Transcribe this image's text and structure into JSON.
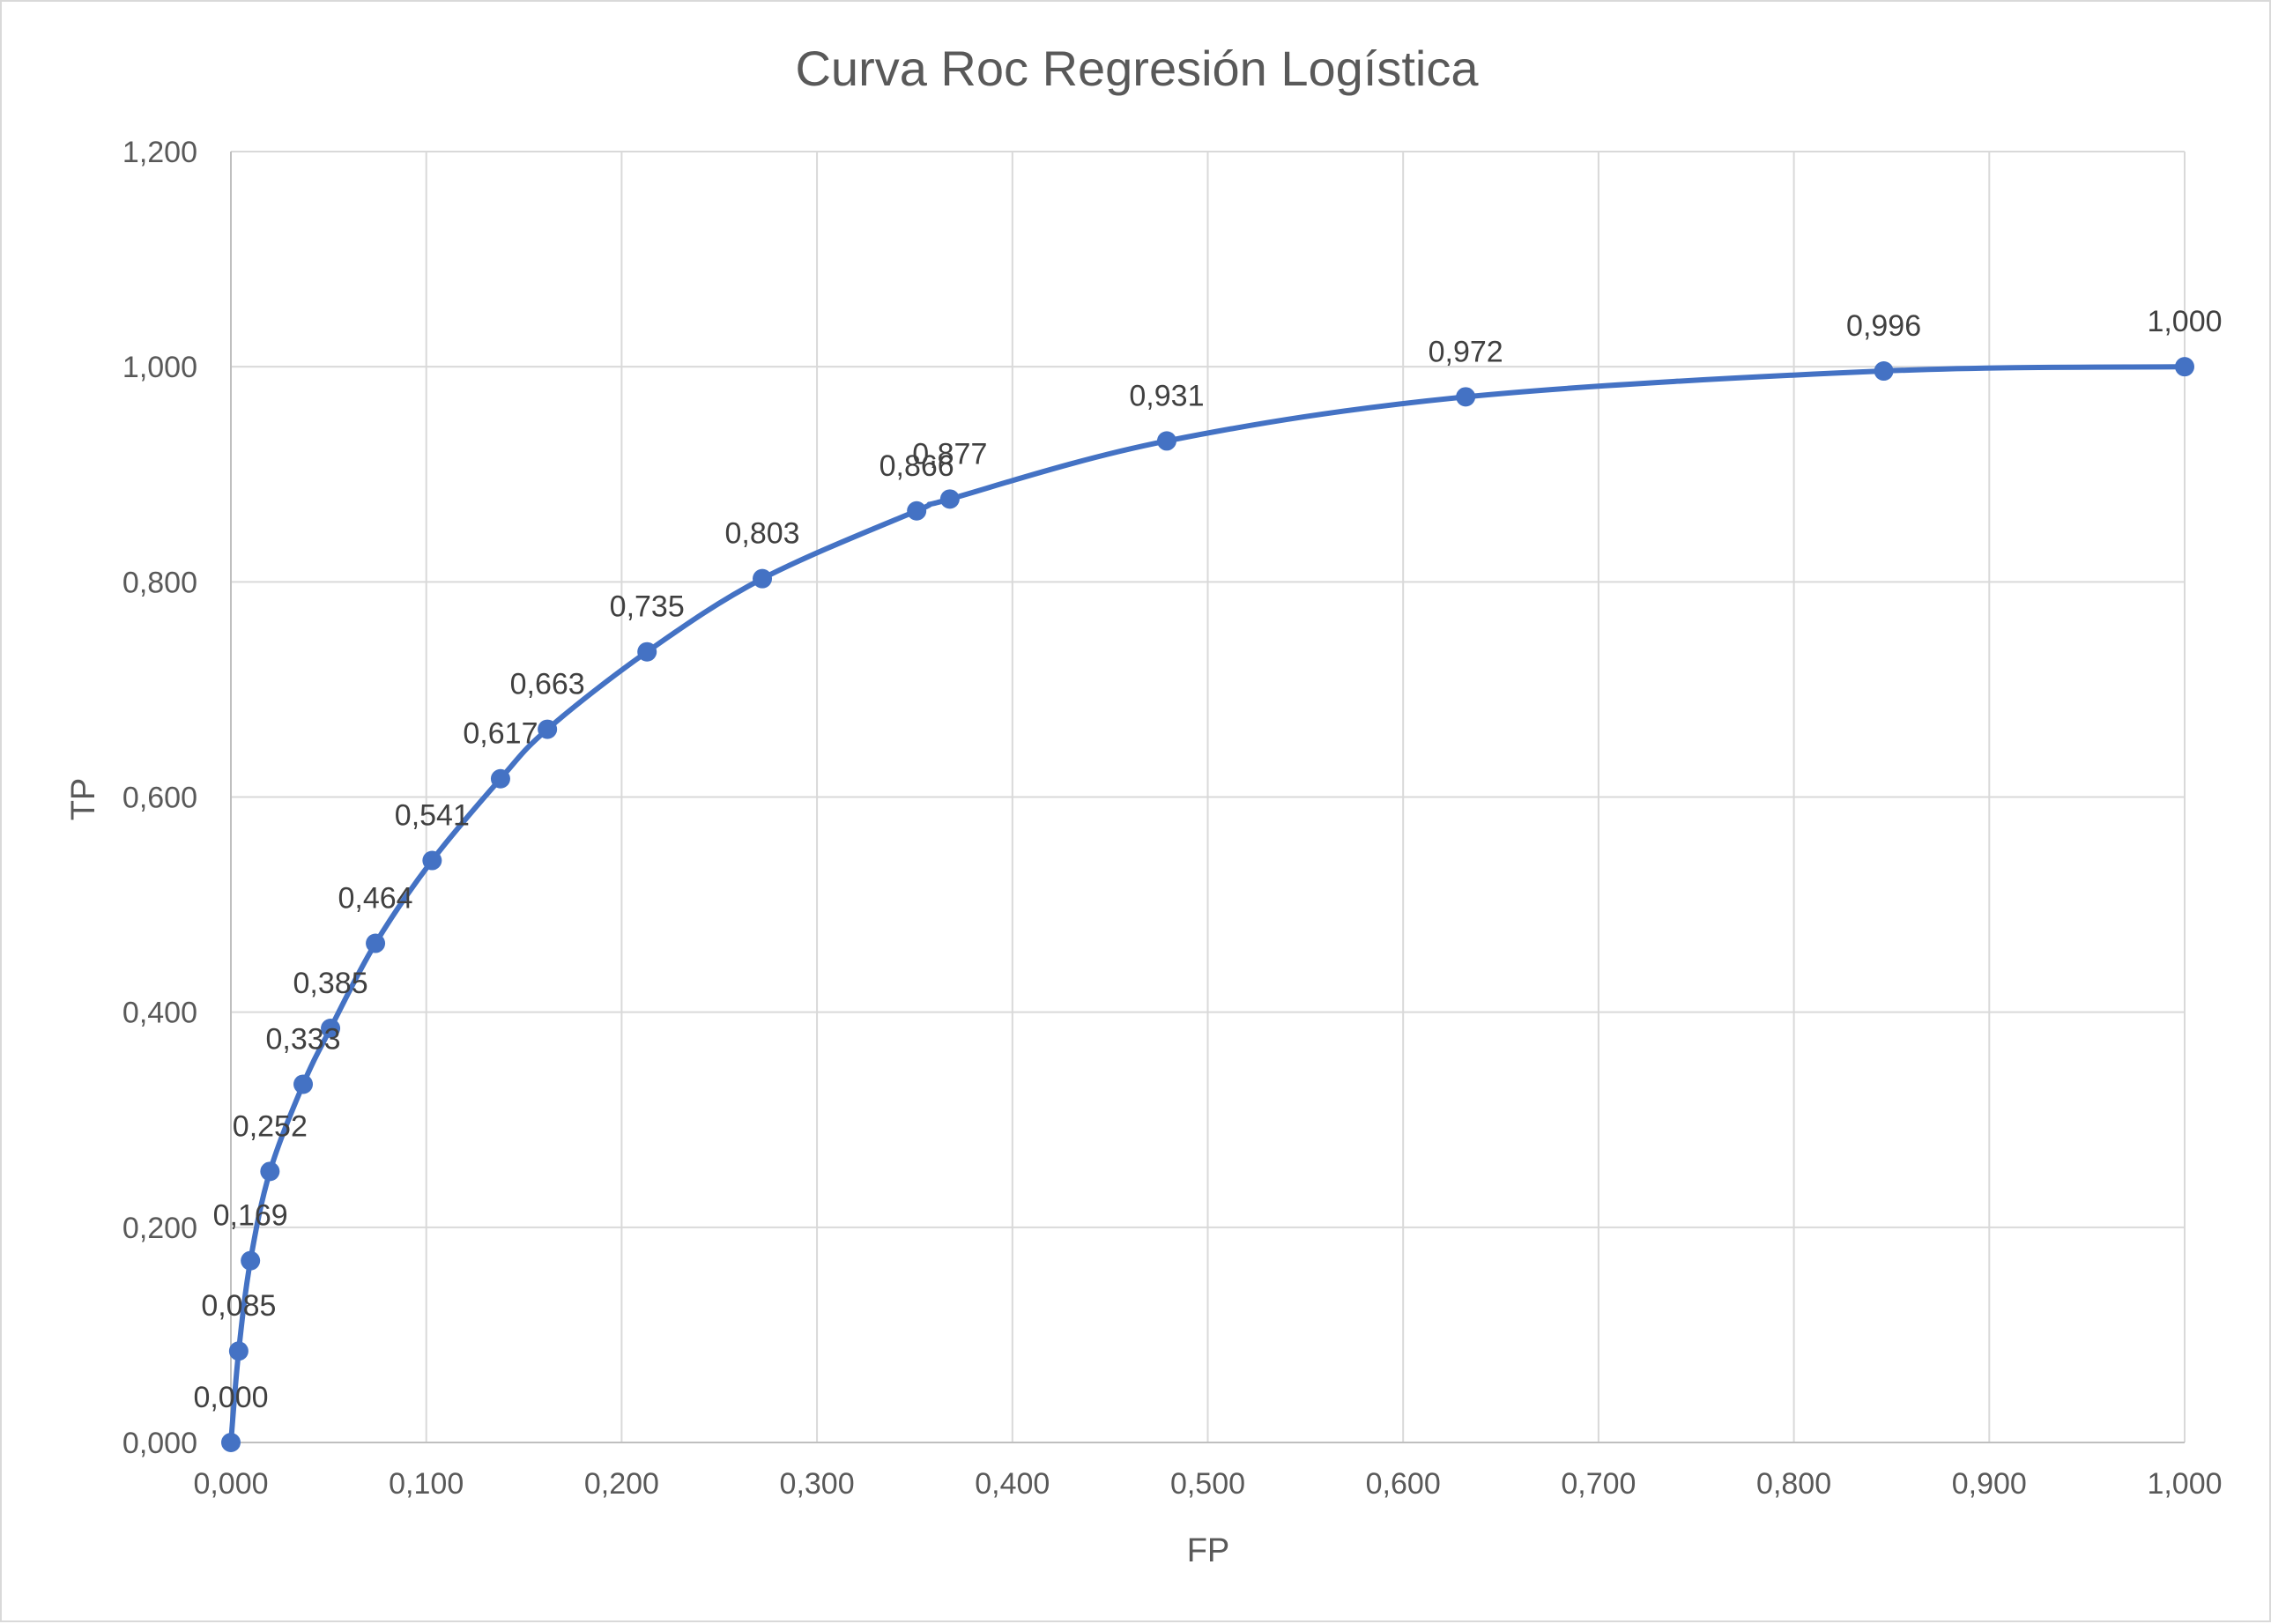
{
  "chart_data": {
    "type": "scatter",
    "title": "Curva Roc Regresión Logística",
    "xlabel": "FP",
    "ylabel": "TP",
    "xlim": [
      0,
      1
    ],
    "ylim": [
      0,
      1.2
    ],
    "grid": true,
    "legend": "none",
    "series_color": "#4472C4",
    "smooth_line": true,
    "x_ticks": [
      "0,000",
      "0,100",
      "0,200",
      "0,300",
      "0,400",
      "0,500",
      "0,600",
      "0,700",
      "0,800",
      "0,900",
      "1,000"
    ],
    "y_ticks": [
      "0,000",
      "0,200",
      "0,400",
      "0,600",
      "0,800",
      "1,000",
      "1,200"
    ],
    "series": [
      {
        "x": [
          0.0,
          0.004,
          0.01,
          0.02,
          0.037,
          0.051,
          0.074,
          0.103,
          0.138,
          0.162,
          0.213,
          0.272,
          0.351,
          0.368,
          0.479,
          0.632,
          0.846,
          1.0
        ],
        "y": [
          0.0,
          0.085,
          0.169,
          0.252,
          0.333,
          0.385,
          0.464,
          0.541,
          0.617,
          0.663,
          0.735,
          0.803,
          0.866,
          0.877,
          0.931,
          0.972,
          0.996,
          1.0
        ],
        "labels": [
          "0,000",
          "0,085",
          "0,169",
          "0,252",
          "0,333",
          "0,385",
          "0,464",
          "0,541",
          "0,617",
          "0,663",
          "0,735",
          "0,803",
          "0,866",
          "0,877",
          "0,931",
          "0,972",
          "0,996",
          "1,000"
        ]
      }
    ]
  }
}
